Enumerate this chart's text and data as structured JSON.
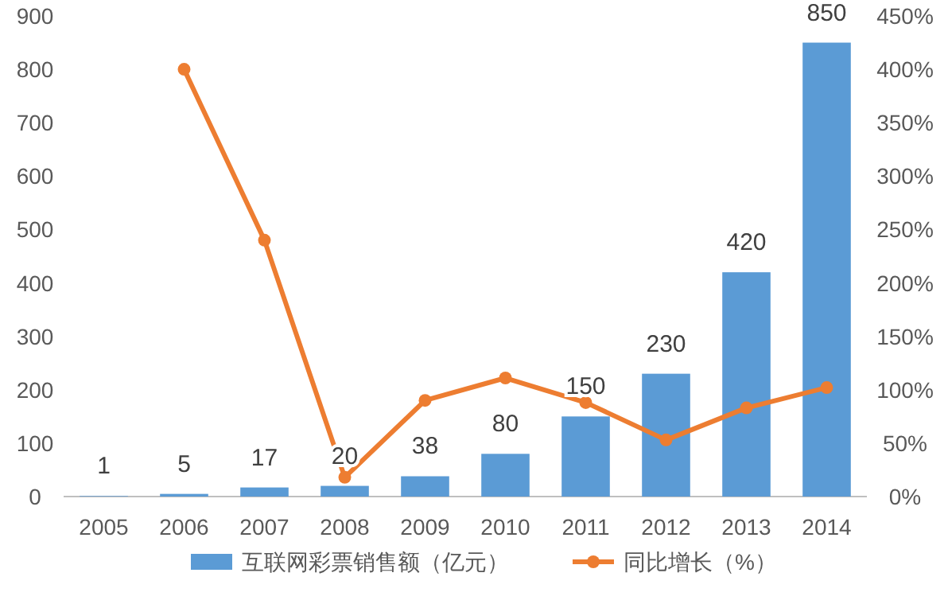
{
  "chart_data": {
    "type": "bar",
    "categories": [
      "2005",
      "2006",
      "2007",
      "2008",
      "2009",
      "2010",
      "2011",
      "2012",
      "2013",
      "2014"
    ],
    "series": [
      {
        "name": "互联网彩票销售额（亿元）",
        "color": "#5b9bd5",
        "values": [
          1,
          5,
          17,
          20,
          38,
          80,
          150,
          230,
          420,
          850
        ],
        "value_labels": [
          "1",
          "5",
          "17",
          "20",
          "38",
          "80",
          "150",
          "230",
          "420",
          "850"
        ]
      },
      {
        "name": "同比增长（%）",
        "type": "line",
        "axis": "y2",
        "color": "#ed7d31",
        "marker": "circle",
        "values": [
          null,
          400,
          240,
          18,
          90,
          111,
          88,
          53,
          83,
          102
        ]
      }
    ],
    "ylim": [
      0,
      900
    ],
    "yticks": [
      0,
      100,
      200,
      300,
      400,
      500,
      600,
      700,
      800,
      900
    ],
    "y2lim": [
      0,
      450
    ],
    "y2ticks": [
      {
        "value": 0,
        "label": "0%"
      },
      {
        "value": 50,
        "label": "50%"
      },
      {
        "value": 100,
        "label": "100%"
      },
      {
        "value": 150,
        "label": "150%"
      },
      {
        "value": 200,
        "label": "200%"
      },
      {
        "value": 250,
        "label": "250%"
      },
      {
        "value": 300,
        "label": "300%"
      },
      {
        "value": 350,
        "label": "350%"
      },
      {
        "value": 400,
        "label": "400%"
      },
      {
        "value": 450,
        "label": "450%"
      }
    ],
    "grid": false,
    "legend": "bottom"
  }
}
